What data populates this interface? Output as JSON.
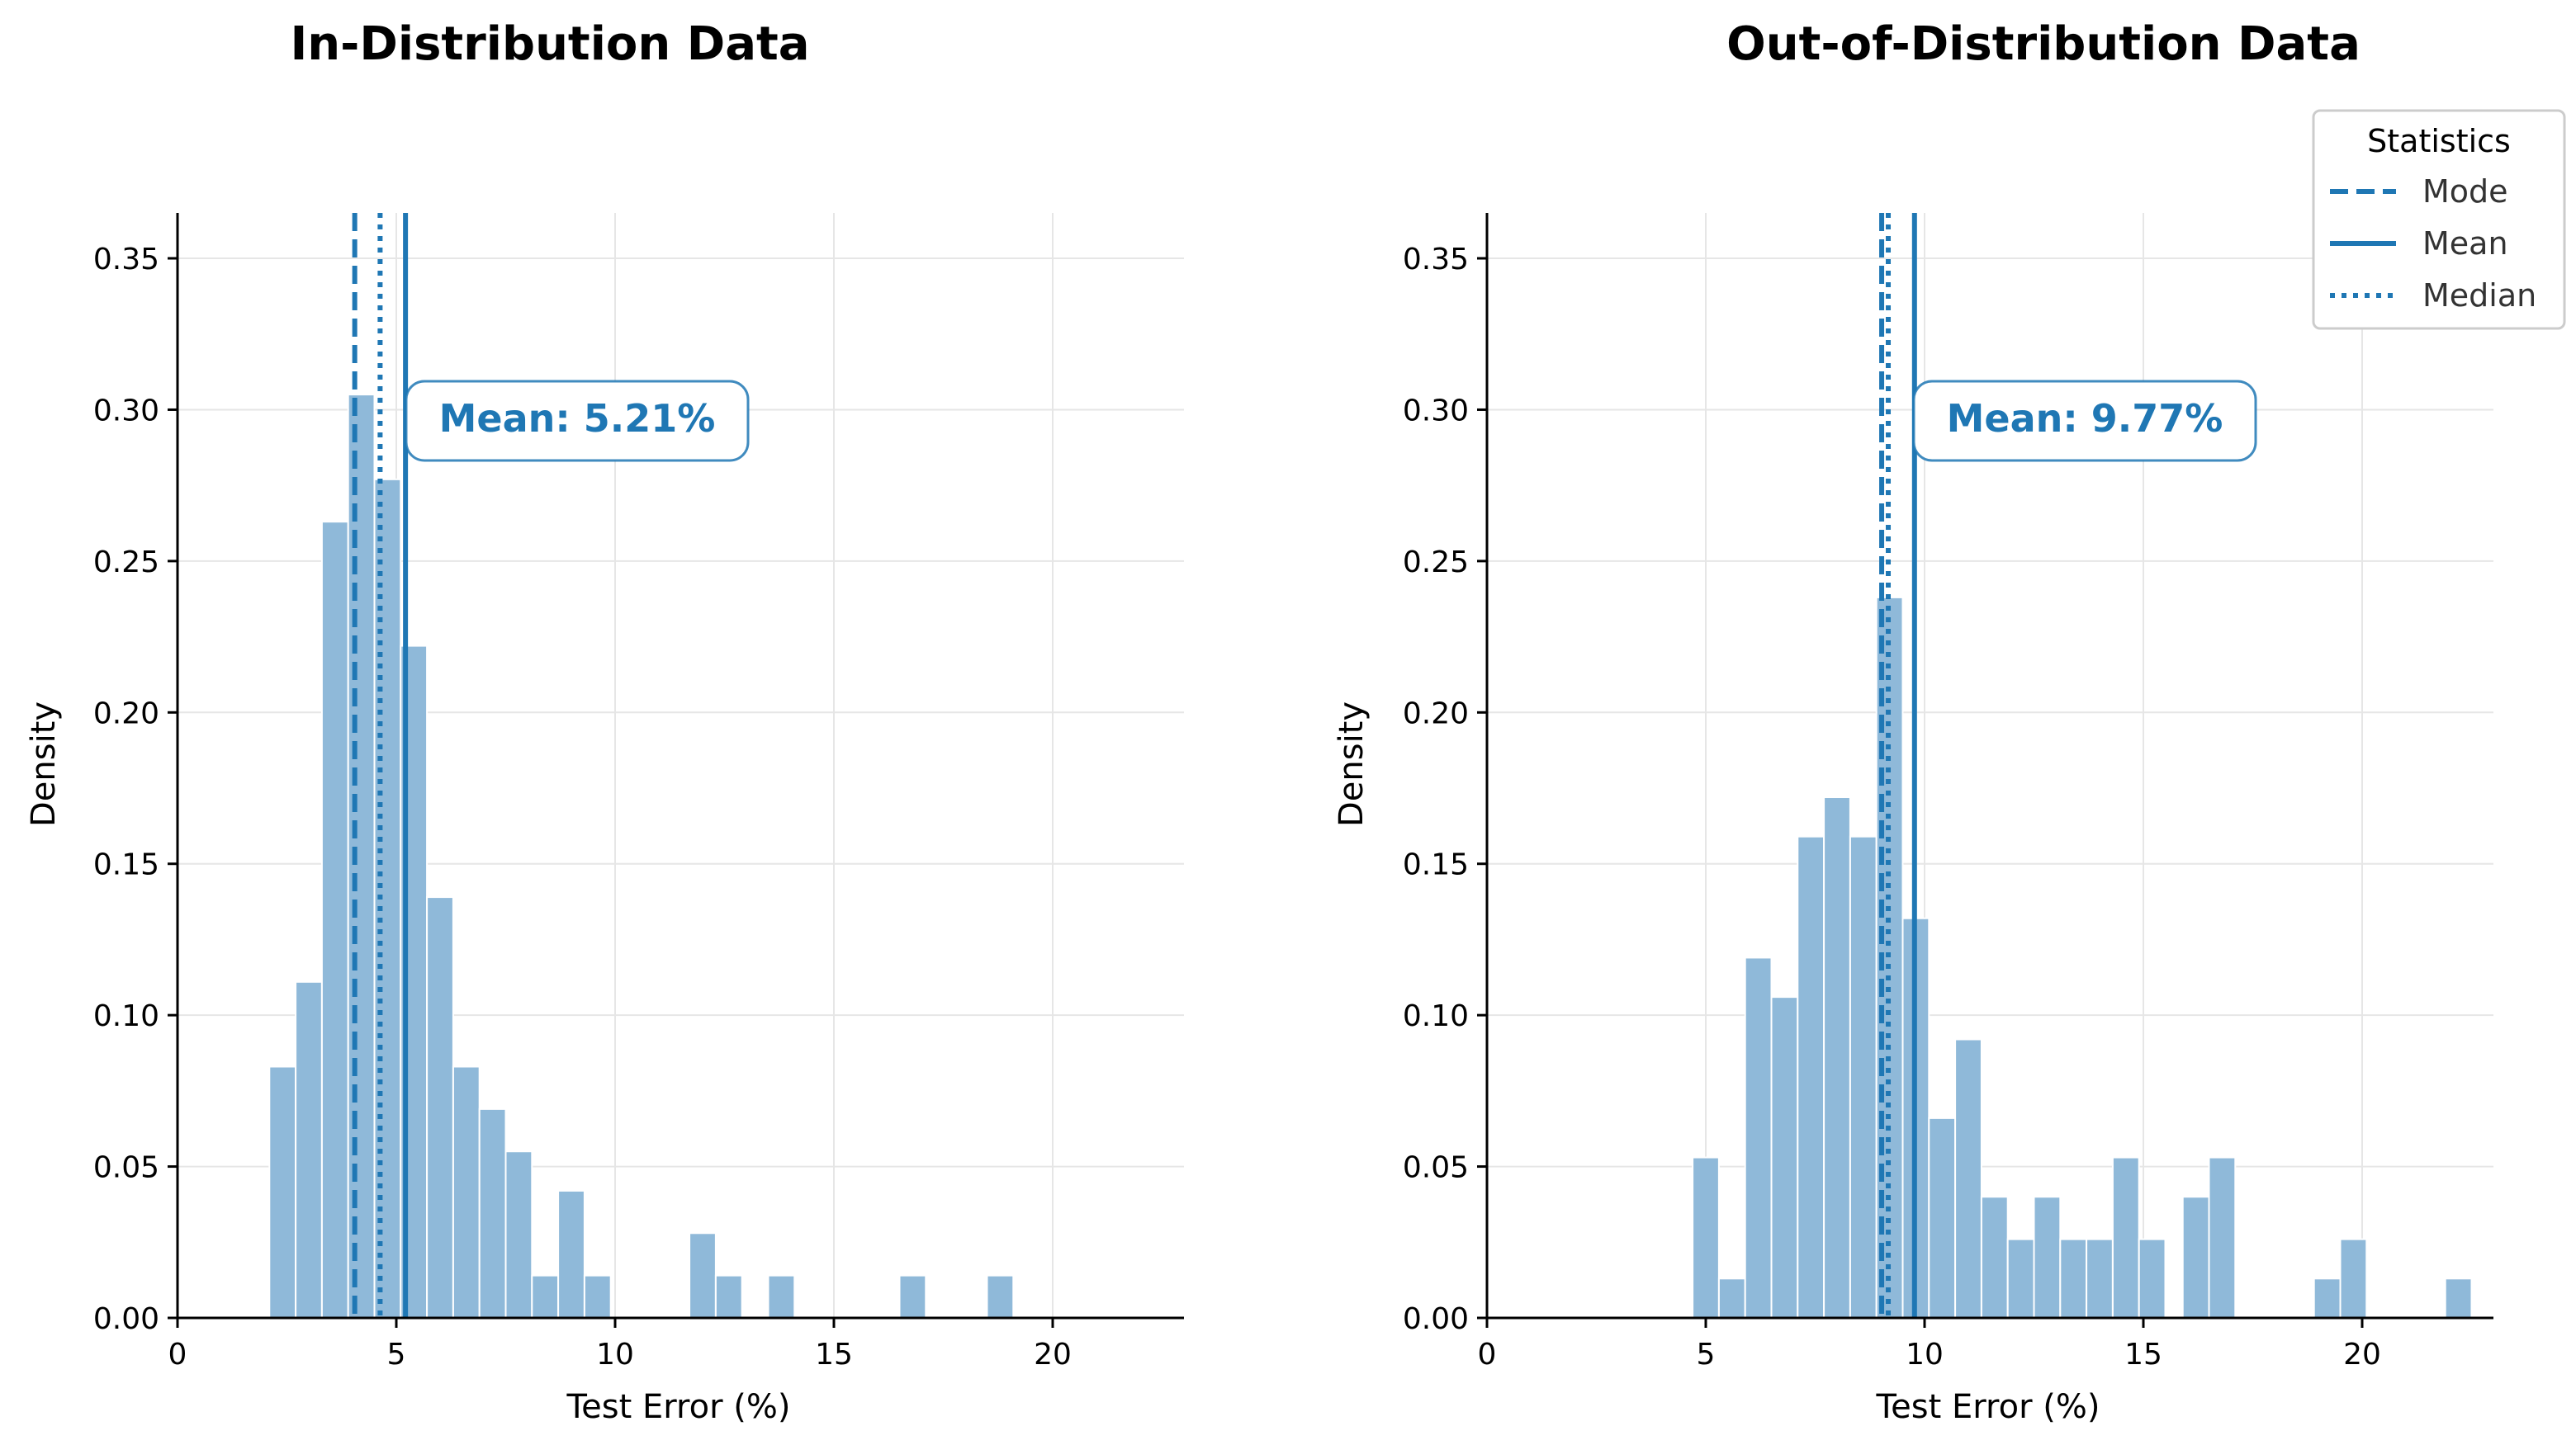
{
  "colors": {
    "accent": "#1f77b4",
    "bar_fill": "#8fb9d9",
    "bar_edge": "#ffffff",
    "grid": "#e6e6e6"
  },
  "legend": {
    "title": "Statistics",
    "entries": [
      {
        "label": "Mode",
        "style": "dashed"
      },
      {
        "label": "Mean",
        "style": "solid"
      },
      {
        "label": "Median",
        "style": "dotted"
      }
    ],
    "placement": "top-right"
  },
  "chart_data": [
    {
      "type": "histogram",
      "title": "In-Distribution Data",
      "xlabel": "Test Error (%)",
      "ylabel": "Density",
      "xlim": [
        0,
        23
      ],
      "ylim": [
        0,
        0.365
      ],
      "xticks": [
        0,
        5,
        10,
        15,
        20
      ],
      "yticks": [
        0.0,
        0.05,
        0.1,
        0.15,
        0.2,
        0.25,
        0.3,
        0.35
      ],
      "grid": true,
      "bin_width": 0.6,
      "bins_start": [
        2.1,
        2.7,
        3.3,
        3.9,
        4.5,
        5.1,
        5.7,
        6.3,
        6.9,
        7.5,
        8.1,
        8.7,
        9.3,
        11.7,
        12.3,
        13.5,
        16.5,
        18.5
      ],
      "densities": [
        0.083,
        0.111,
        0.263,
        0.305,
        0.277,
        0.222,
        0.139,
        0.083,
        0.069,
        0.055,
        0.014,
        0.042,
        0.014,
        0.028,
        0.014,
        0.014,
        0.014,
        0.014
      ],
      "mode": 4.05,
      "median": 4.63,
      "mean": 5.21,
      "annotation": "Mean: 5.21%"
    },
    {
      "type": "histogram",
      "title": "Out-of-Distribution Data",
      "xlabel": "Test Error (%)",
      "ylabel": "Density",
      "xlim": [
        0,
        23
      ],
      "ylim": [
        0,
        0.365
      ],
      "xticks": [
        0,
        5,
        10,
        15,
        20
      ],
      "yticks": [
        0.0,
        0.05,
        0.1,
        0.15,
        0.2,
        0.25,
        0.3,
        0.35
      ],
      "grid": true,
      "bin_width": 0.6,
      "bins_start": [
        4.7,
        5.3,
        5.9,
        6.5,
        7.1,
        7.7,
        8.3,
        8.9,
        9.5,
        10.1,
        10.7,
        11.3,
        11.9,
        12.5,
        13.1,
        13.7,
        14.3,
        14.9,
        15.9,
        16.5,
        18.9,
        19.5,
        21.9
      ],
      "densities": [
        0.053,
        0.013,
        0.119,
        0.106,
        0.159,
        0.172,
        0.159,
        0.238,
        0.132,
        0.066,
        0.092,
        0.04,
        0.026,
        0.04,
        0.026,
        0.026,
        0.053,
        0.026,
        0.04,
        0.053,
        0.013,
        0.026,
        0.013
      ],
      "mode": 9.02,
      "median": 9.17,
      "mean": 9.77,
      "annotation": "Mean: 9.77%"
    }
  ]
}
